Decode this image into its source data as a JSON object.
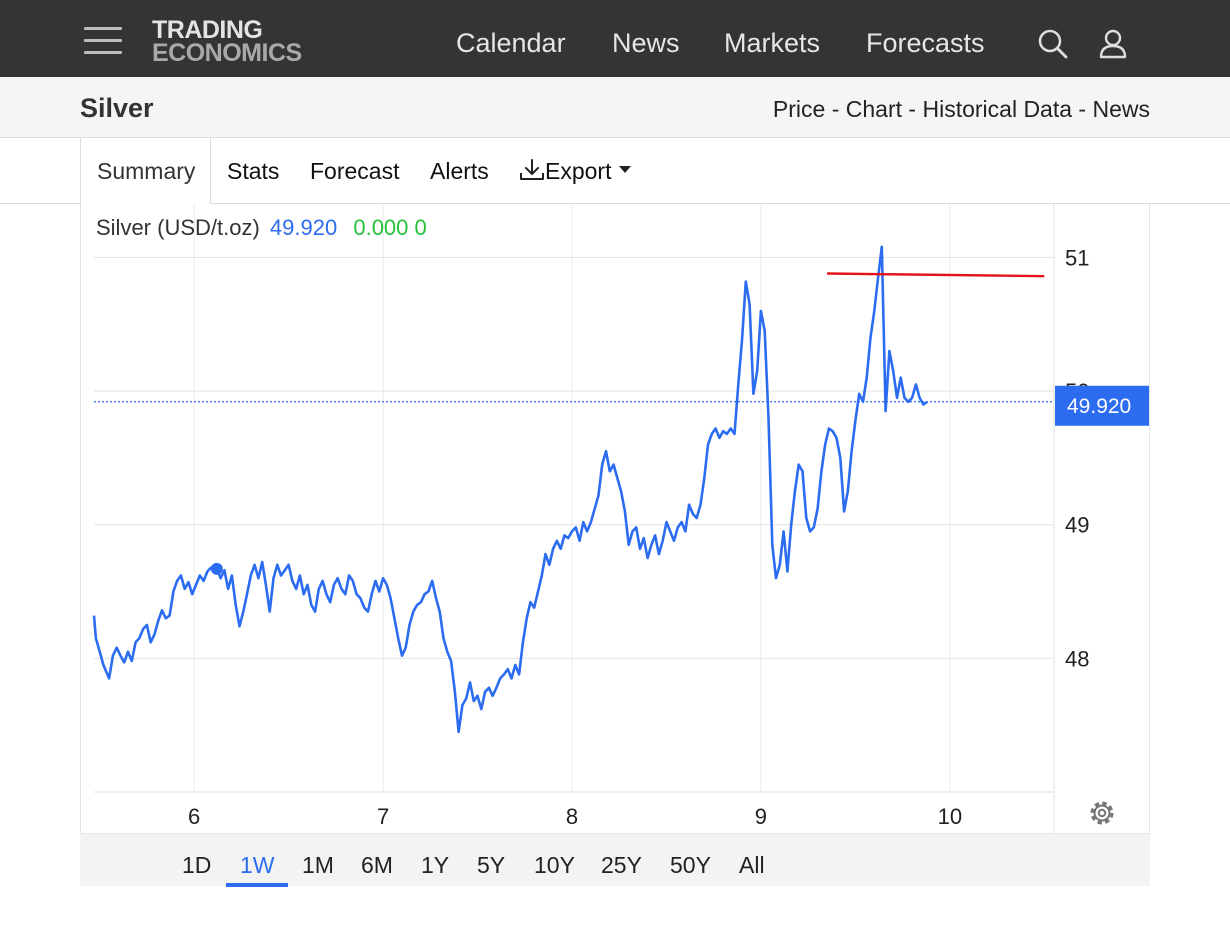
{
  "nav": {
    "logo_line1": "TRADING",
    "logo_line2": "ECONOMICS",
    "links": [
      "Calendar",
      "News",
      "Markets",
      "Forecasts"
    ]
  },
  "title_bar": {
    "title": "Silver",
    "subnav": [
      "Price",
      "Chart",
      "Historical Data",
      "News"
    ],
    "separator": " - "
  },
  "tabs": [
    "Summary",
    "Stats",
    "Forecast",
    "Alerts",
    "Export"
  ],
  "active_tab": "Summary",
  "legend": {
    "name": "Silver (USD/t.oz)",
    "price": "49.920",
    "change": "0.000 0"
  },
  "ranges": [
    "1D",
    "1W",
    "1M",
    "6M",
    "1Y",
    "5Y",
    "10Y",
    "25Y",
    "50Y",
    "All"
  ],
  "active_range": "1W",
  "colors": {
    "line": "#2c6cf0",
    "price_tag": "#2c6cf0",
    "resistance": "#e3131b",
    "change_positive": "#27c23a"
  },
  "chart_data": {
    "type": "line",
    "title": "",
    "xlabel": "",
    "ylabel": "",
    "x_ticks": [
      "6",
      "7",
      "8",
      "9",
      "10"
    ],
    "y_ticks": [
      "48",
      "49",
      "50",
      "51"
    ],
    "ylim": [
      47.0,
      51.4
    ],
    "xlim": [
      5.47,
      10.53
    ],
    "last_price_label": "49.920",
    "resistance_line": {
      "x": [
        9.35,
        10.5
      ],
      "y": [
        50.88,
        50.86
      ]
    },
    "marker": {
      "x": 6.12,
      "y": 48.67
    },
    "series": [
      {
        "values": [
          [
            5.47,
            48.32
          ],
          [
            5.48,
            48.15
          ],
          [
            5.5,
            48.05
          ],
          [
            5.52,
            47.95
          ],
          [
            5.55,
            47.85
          ],
          [
            5.57,
            48.02
          ],
          [
            5.59,
            48.08
          ],
          [
            5.61,
            48.02
          ],
          [
            5.63,
            47.97
          ],
          [
            5.65,
            48.05
          ],
          [
            5.67,
            47.98
          ],
          [
            5.69,
            48.12
          ],
          [
            5.71,
            48.15
          ],
          [
            5.73,
            48.22
          ],
          [
            5.75,
            48.25
          ],
          [
            5.77,
            48.12
          ],
          [
            5.79,
            48.18
          ],
          [
            5.81,
            48.28
          ],
          [
            5.83,
            48.36
          ],
          [
            5.85,
            48.3
          ],
          [
            5.87,
            48.32
          ],
          [
            5.89,
            48.5
          ],
          [
            5.91,
            48.58
          ],
          [
            5.93,
            48.62
          ],
          [
            5.95,
            48.52
          ],
          [
            5.97,
            48.57
          ],
          [
            5.99,
            48.48
          ],
          [
            6.01,
            48.55
          ],
          [
            6.03,
            48.62
          ],
          [
            6.05,
            48.58
          ],
          [
            6.07,
            48.65
          ],
          [
            6.09,
            48.68
          ],
          [
            6.12,
            48.67
          ],
          [
            6.14,
            48.6
          ],
          [
            6.16,
            48.66
          ],
          [
            6.18,
            48.52
          ],
          [
            6.2,
            48.62
          ],
          [
            6.22,
            48.4
          ],
          [
            6.24,
            48.24
          ],
          [
            6.26,
            48.35
          ],
          [
            6.28,
            48.48
          ],
          [
            6.3,
            48.62
          ],
          [
            6.32,
            48.7
          ],
          [
            6.34,
            48.6
          ],
          [
            6.36,
            48.72
          ],
          [
            6.38,
            48.55
          ],
          [
            6.4,
            48.35
          ],
          [
            6.42,
            48.6
          ],
          [
            6.44,
            48.7
          ],
          [
            6.46,
            48.62
          ],
          [
            6.48,
            48.66
          ],
          [
            6.5,
            48.7
          ],
          [
            6.52,
            48.58
          ],
          [
            6.54,
            48.52
          ],
          [
            6.56,
            48.62
          ],
          [
            6.58,
            48.48
          ],
          [
            6.6,
            48.55
          ],
          [
            6.62,
            48.4
          ],
          [
            6.64,
            48.35
          ],
          [
            6.66,
            48.52
          ],
          [
            6.68,
            48.58
          ],
          [
            6.7,
            48.48
          ],
          [
            6.72,
            48.42
          ],
          [
            6.74,
            48.55
          ],
          [
            6.76,
            48.6
          ],
          [
            6.78,
            48.52
          ],
          [
            6.8,
            48.48
          ],
          [
            6.82,
            48.62
          ],
          [
            6.84,
            48.58
          ],
          [
            6.86,
            48.48
          ],
          [
            6.88,
            48.45
          ],
          [
            6.9,
            48.38
          ],
          [
            6.92,
            48.35
          ],
          [
            6.94,
            48.48
          ],
          [
            6.96,
            48.58
          ],
          [
            6.98,
            48.5
          ],
          [
            7.0,
            48.6
          ],
          [
            7.02,
            48.55
          ],
          [
            7.04,
            48.45
          ],
          [
            7.06,
            48.3
          ],
          [
            7.08,
            48.15
          ],
          [
            7.1,
            48.02
          ],
          [
            7.12,
            48.08
          ],
          [
            7.14,
            48.25
          ],
          [
            7.16,
            48.35
          ],
          [
            7.18,
            48.4
          ],
          [
            7.2,
            48.42
          ],
          [
            7.22,
            48.48
          ],
          [
            7.24,
            48.5
          ],
          [
            7.26,
            48.58
          ],
          [
            7.28,
            48.45
          ],
          [
            7.3,
            48.35
          ],
          [
            7.32,
            48.15
          ],
          [
            7.34,
            48.05
          ],
          [
            7.36,
            47.98
          ],
          [
            7.38,
            47.75
          ],
          [
            7.4,
            47.45
          ],
          [
            7.42,
            47.65
          ],
          [
            7.44,
            47.7
          ],
          [
            7.46,
            47.82
          ],
          [
            7.48,
            47.68
          ],
          [
            7.5,
            47.72
          ],
          [
            7.52,
            47.62
          ],
          [
            7.54,
            47.75
          ],
          [
            7.56,
            47.78
          ],
          [
            7.58,
            47.72
          ],
          [
            7.6,
            47.78
          ],
          [
            7.62,
            47.85
          ],
          [
            7.64,
            47.88
          ],
          [
            7.66,
            47.92
          ],
          [
            7.68,
            47.85
          ],
          [
            7.7,
            47.95
          ],
          [
            7.72,
            47.88
          ],
          [
            7.74,
            48.12
          ],
          [
            7.76,
            48.3
          ],
          [
            7.78,
            48.42
          ],
          [
            7.8,
            48.38
          ],
          [
            7.82,
            48.5
          ],
          [
            7.84,
            48.62
          ],
          [
            7.86,
            48.78
          ],
          [
            7.88,
            48.7
          ],
          [
            7.9,
            48.82
          ],
          [
            7.92,
            48.88
          ],
          [
            7.94,
            48.82
          ],
          [
            7.96,
            48.92
          ],
          [
            7.98,
            48.9
          ],
          [
            8.0,
            48.95
          ],
          [
            8.02,
            48.98
          ],
          [
            8.04,
            48.88
          ],
          [
            8.06,
            49.02
          ],
          [
            8.08,
            48.95
          ],
          [
            8.1,
            49.02
          ],
          [
            8.12,
            49.12
          ],
          [
            8.14,
            49.22
          ],
          [
            8.16,
            49.45
          ],
          [
            8.18,
            49.55
          ],
          [
            8.2,
            49.4
          ],
          [
            8.22,
            49.45
          ],
          [
            8.24,
            49.35
          ],
          [
            8.26,
            49.25
          ],
          [
            8.28,
            49.1
          ],
          [
            8.3,
            48.85
          ],
          [
            8.32,
            48.95
          ],
          [
            8.34,
            48.98
          ],
          [
            8.36,
            48.82
          ],
          [
            8.38,
            48.9
          ],
          [
            8.4,
            48.75
          ],
          [
            8.42,
            48.85
          ],
          [
            8.44,
            48.92
          ],
          [
            8.46,
            48.78
          ],
          [
            8.48,
            48.88
          ],
          [
            8.5,
            49.02
          ],
          [
            8.52,
            48.95
          ],
          [
            8.54,
            48.88
          ],
          [
            8.56,
            48.98
          ],
          [
            8.58,
            49.02
          ],
          [
            8.6,
            48.95
          ],
          [
            8.62,
            49.15
          ],
          [
            8.64,
            49.08
          ],
          [
            8.66,
            49.05
          ],
          [
            8.68,
            49.15
          ],
          [
            8.7,
            49.35
          ],
          [
            8.72,
            49.6
          ],
          [
            8.74,
            49.68
          ],
          [
            8.76,
            49.72
          ],
          [
            8.78,
            49.65
          ],
          [
            8.8,
            49.7
          ],
          [
            8.82,
            49.68
          ],
          [
            8.84,
            49.72
          ],
          [
            8.86,
            49.68
          ],
          [
            8.88,
            50.05
          ],
          [
            8.9,
            50.38
          ],
          [
            8.92,
            50.82
          ],
          [
            8.94,
            50.65
          ],
          [
            8.96,
            49.98
          ],
          [
            8.98,
            50.15
          ],
          [
            9.0,
            50.6
          ],
          [
            9.02,
            50.45
          ],
          [
            9.04,
            49.8
          ],
          [
            9.06,
            48.85
          ],
          [
            9.08,
            48.6
          ],
          [
            9.1,
            48.7
          ],
          [
            9.12,
            48.95
          ],
          [
            9.14,
            48.65
          ],
          [
            9.16,
            49.0
          ],
          [
            9.18,
            49.25
          ],
          [
            9.2,
            49.45
          ],
          [
            9.22,
            49.4
          ],
          [
            9.24,
            49.05
          ],
          [
            9.26,
            48.95
          ],
          [
            9.28,
            48.98
          ],
          [
            9.3,
            49.12
          ],
          [
            9.32,
            49.4
          ],
          [
            9.34,
            49.6
          ],
          [
            9.36,
            49.72
          ],
          [
            9.38,
            49.7
          ],
          [
            9.4,
            49.65
          ],
          [
            9.42,
            49.5
          ],
          [
            9.44,
            49.1
          ],
          [
            9.46,
            49.25
          ],
          [
            9.48,
            49.55
          ],
          [
            9.5,
            49.78
          ],
          [
            9.52,
            49.98
          ],
          [
            9.54,
            49.92
          ],
          [
            9.56,
            50.1
          ],
          [
            9.58,
            50.4
          ],
          [
            9.6,
            50.6
          ],
          [
            9.62,
            50.85
          ],
          [
            9.64,
            51.08
          ],
          [
            9.66,
            49.85
          ],
          [
            9.68,
            50.3
          ],
          [
            9.7,
            50.15
          ],
          [
            9.72,
            49.95
          ],
          [
            9.74,
            50.1
          ],
          [
            9.76,
            49.95
          ],
          [
            9.78,
            49.92
          ],
          [
            9.8,
            49.95
          ],
          [
            9.82,
            50.05
          ],
          [
            9.84,
            49.95
          ],
          [
            9.86,
            49.9
          ],
          [
            9.88,
            49.92
          ]
        ]
      }
    ]
  }
}
